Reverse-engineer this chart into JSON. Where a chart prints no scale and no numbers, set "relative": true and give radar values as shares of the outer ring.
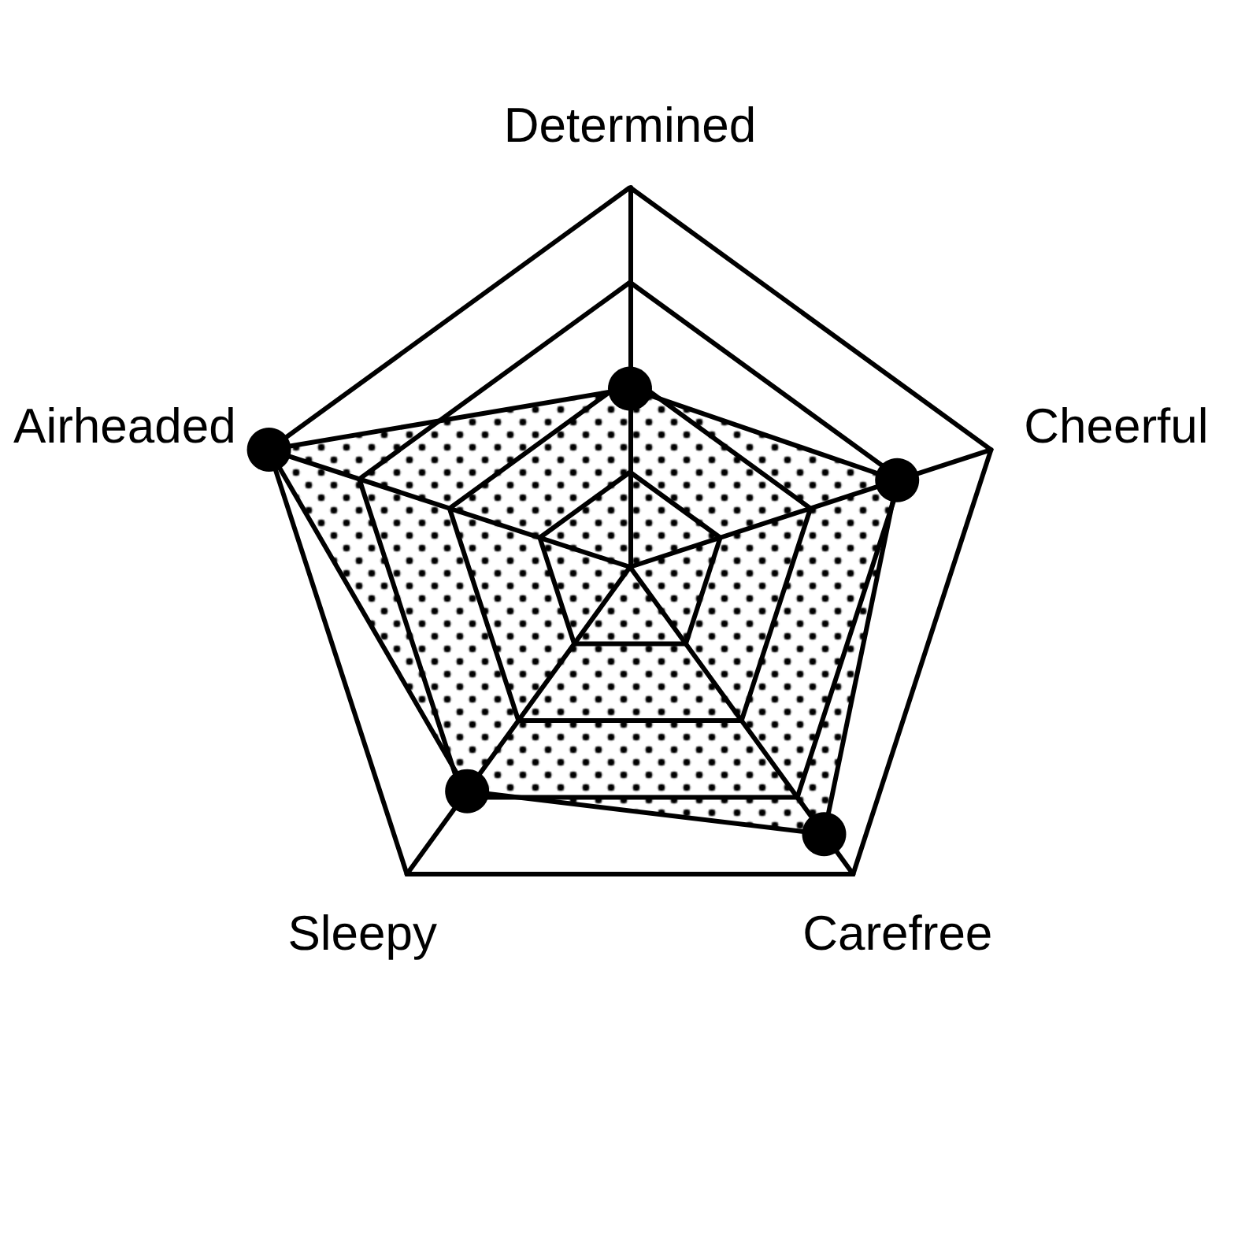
{
  "chart_data": {
    "type": "radar",
    "relative": true,
    "grid": true,
    "marker": "circle",
    "line_style": "solid",
    "categories": [
      "Determined",
      "Cheerful",
      "Carefree",
      "Sleepy",
      "Airheaded"
    ],
    "series": [
      {
        "color": "#000000",
        "values": [
          0.47,
          0.74,
          0.87,
          0.73,
          1.0
        ]
      }
    ]
  }
}
